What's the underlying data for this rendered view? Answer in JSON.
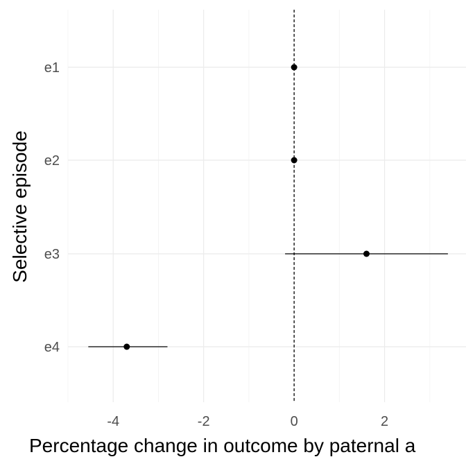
{
  "chart_data": {
    "type": "scatter",
    "subtype": "forest-plot",
    "title": "",
    "xlabel": "Percentage change in outcome by paternal a",
    "ylabel": "Selective episode",
    "xlim": [
      -5.0,
      3.8
    ],
    "x_ticks": [
      -4,
      -2,
      0,
      2
    ],
    "x_tick_labels": [
      "-4",
      "-2",
      "0",
      "2"
    ],
    "x_minor_ticks": [
      -5,
      -3,
      -1,
      1,
      3
    ],
    "categories": [
      "e1",
      "e2",
      "e3",
      "e4"
    ],
    "points": [
      {
        "category": "e1",
        "estimate": 0.0,
        "lower": 0.0,
        "upper": 0.0
      },
      {
        "category": "e2",
        "estimate": 0.0,
        "lower": 0.0,
        "upper": 0.0
      },
      {
        "category": "e3",
        "estimate": 1.6,
        "lower": -0.2,
        "upper": 3.4
      },
      {
        "category": "e4",
        "estimate": -3.7,
        "lower": -4.55,
        "upper": -2.8
      }
    ],
    "reference_line": {
      "x": 0,
      "style": "dashed"
    },
    "grid": true,
    "legend": "none",
    "colors": {
      "point": "#000000",
      "errorbar": "#000000",
      "grid_major": "#ebebeb",
      "grid_minor": "#f2f2f2",
      "tick_label": "#4d4d4d",
      "background": "#ffffff"
    }
  }
}
